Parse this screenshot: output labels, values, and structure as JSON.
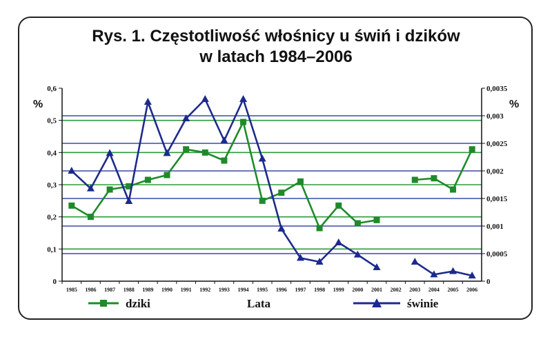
{
  "chart_data": {
    "type": "line",
    "title_lines": [
      "Rys. 1. Częstotliwość włośnicy u świń i dzików",
      "w latach 1984–2006"
    ],
    "xlabel": "Lata",
    "y_left_unit": "%",
    "y_right_unit": "%",
    "y_left_ticks": [
      "0",
      "0,1",
      "0,2",
      "0,3",
      "0,4",
      "0,5",
      "0,6"
    ],
    "y_right_ticks": [
      "0",
      "0,0005",
      "0,001",
      "0,0015",
      "0,002",
      "0,0025",
      "0,003",
      "0,0035"
    ],
    "ylim_left": [
      0,
      0.6
    ],
    "ylim_right": [
      0,
      0.0035
    ],
    "categories": [
      "1985",
      "1986",
      "1987",
      "1988",
      "1989",
      "1990",
      "1991",
      "1992",
      "1993",
      "1994",
      "1995",
      "1996",
      "1997",
      "1998",
      "1999",
      "2000",
      "2001",
      "2002",
      "2003",
      "2004",
      "2005",
      "2006"
    ],
    "series": [
      {
        "name": "dziki",
        "axis": "left",
        "color": "#1f8a2a",
        "marker": "square",
        "values": [
          0.235,
          0.2,
          0.285,
          0.295,
          0.315,
          0.33,
          0.41,
          0.4,
          0.375,
          0.495,
          0.25,
          0.275,
          0.31,
          0.165,
          0.235,
          0.18,
          0.19,
          null,
          0.315,
          0.32,
          0.285,
          0.41
        ]
      },
      {
        "name": "świnie",
        "axis": "right",
        "color": "#1c2a8c",
        "marker": "triangle",
        "values": [
          0.002,
          0.00168,
          0.00232,
          0.00145,
          0.00325,
          0.00232,
          0.00295,
          0.0033,
          0.00255,
          0.0033,
          0.00222,
          0.00095,
          0.00042,
          0.00035,
          0.0007,
          0.00048,
          0.00025,
          null,
          0.00035,
          0.00012,
          0.00018,
          0.0001
        ]
      }
    ],
    "grid": true,
    "gridlines": [
      {
        "axis": "left",
        "values": [
          0.1,
          0.2,
          0.3,
          0.4,
          0.5
        ],
        "color": "#2e9a3a"
      },
      {
        "axis": "right",
        "values": [
          0.0005,
          0.001,
          0.0015,
          0.002,
          0.0025,
          0.003
        ],
        "color": "#3a4aa8"
      }
    ],
    "legend": {
      "position": "bottom"
    }
  }
}
